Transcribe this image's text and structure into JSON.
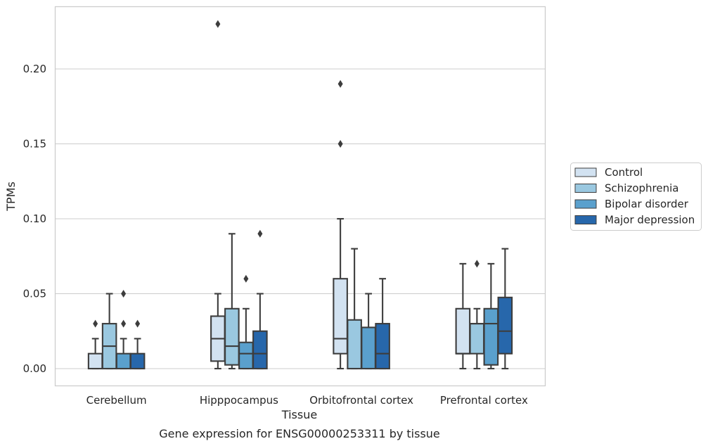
{
  "chart_data": {
    "type": "box",
    "title": "",
    "caption": "Gene expression for ENSG00000253311 by tissue",
    "xlabel": "Tissue",
    "ylabel": "TPMs",
    "ylim": [
      -0.011,
      0.242
    ],
    "yticks": [
      0.0,
      0.05,
      0.1,
      0.15,
      0.2
    ],
    "ytick_labels": [
      "0.00",
      "0.05",
      "0.10",
      "0.15",
      "0.20"
    ],
    "grid": "horizontal",
    "legend_position": "right",
    "categories": [
      "Cerebellum",
      "Hipppocampus",
      "Orbitofrontal cortex",
      "Prefrontal cortex"
    ],
    "series": [
      {
        "name": "Control",
        "color": "#d2e2f1",
        "boxes": [
          {
            "whislo": 0.0,
            "q1": 0.0,
            "med": 0.0,
            "q3": 0.01,
            "whishi": 0.02,
            "fliers": [
              0.03
            ]
          },
          {
            "whislo": 0.0,
            "q1": 0.005,
            "med": 0.02,
            "q3": 0.035,
            "whishi": 0.05,
            "fliers": [
              0.23
            ]
          },
          {
            "whislo": 0.0,
            "q1": 0.01,
            "med": 0.02,
            "q3": 0.06,
            "whishi": 0.1,
            "fliers": [
              0.15,
              0.19
            ]
          },
          {
            "whislo": 0.0,
            "q1": 0.01,
            "med": 0.01,
            "q3": 0.04,
            "whishi": 0.07,
            "fliers": []
          }
        ]
      },
      {
        "name": "Schizophrenia",
        "color": "#9ac8e0",
        "boxes": [
          {
            "whislo": 0.0,
            "q1": 0.0,
            "med": 0.015,
            "q3": 0.03,
            "whishi": 0.05,
            "fliers": []
          },
          {
            "whislo": 0.0,
            "q1": 0.0025,
            "med": 0.015,
            "q3": 0.04,
            "whishi": 0.09,
            "fliers": []
          },
          {
            "whislo": 0.0,
            "q1": 0.0,
            "med": 0.0,
            "q3": 0.0325,
            "whishi": 0.08,
            "fliers": []
          },
          {
            "whislo": 0.0,
            "q1": 0.01,
            "med": 0.03,
            "q3": 0.03,
            "whishi": 0.04,
            "fliers": [
              0.07
            ]
          }
        ]
      },
      {
        "name": "Bipolar disorder",
        "color": "#5aa0cd",
        "boxes": [
          {
            "whislo": 0.0,
            "q1": 0.0,
            "med": 0.0,
            "q3": 0.01,
            "whishi": 0.02,
            "fliers": [
              0.03,
              0.05
            ]
          },
          {
            "whislo": 0.0,
            "q1": 0.0,
            "med": 0.01,
            "q3": 0.0175,
            "whishi": 0.04,
            "fliers": [
              0.06
            ]
          },
          {
            "whislo": 0.0,
            "q1": 0.0,
            "med": 0.0,
            "q3": 0.0275,
            "whishi": 0.05,
            "fliers": []
          },
          {
            "whislo": 0.0,
            "q1": 0.0025,
            "med": 0.03,
            "q3": 0.04,
            "whishi": 0.07,
            "fliers": []
          }
        ]
      },
      {
        "name": "Major depression",
        "color": "#2767ab",
        "boxes": [
          {
            "whislo": 0.0,
            "q1": 0.0,
            "med": 0.0,
            "q3": 0.01,
            "whishi": 0.02,
            "fliers": [
              0.03
            ]
          },
          {
            "whislo": 0.0,
            "q1": 0.0,
            "med": 0.01,
            "q3": 0.025,
            "whishi": 0.05,
            "fliers": [
              0.09
            ]
          },
          {
            "whislo": 0.0,
            "q1": 0.0,
            "med": 0.01,
            "q3": 0.03,
            "whishi": 0.06,
            "fliers": []
          },
          {
            "whislo": 0.0,
            "q1": 0.01,
            "med": 0.025,
            "q3": 0.0475,
            "whishi": 0.08,
            "fliers": []
          }
        ]
      }
    ]
  }
}
